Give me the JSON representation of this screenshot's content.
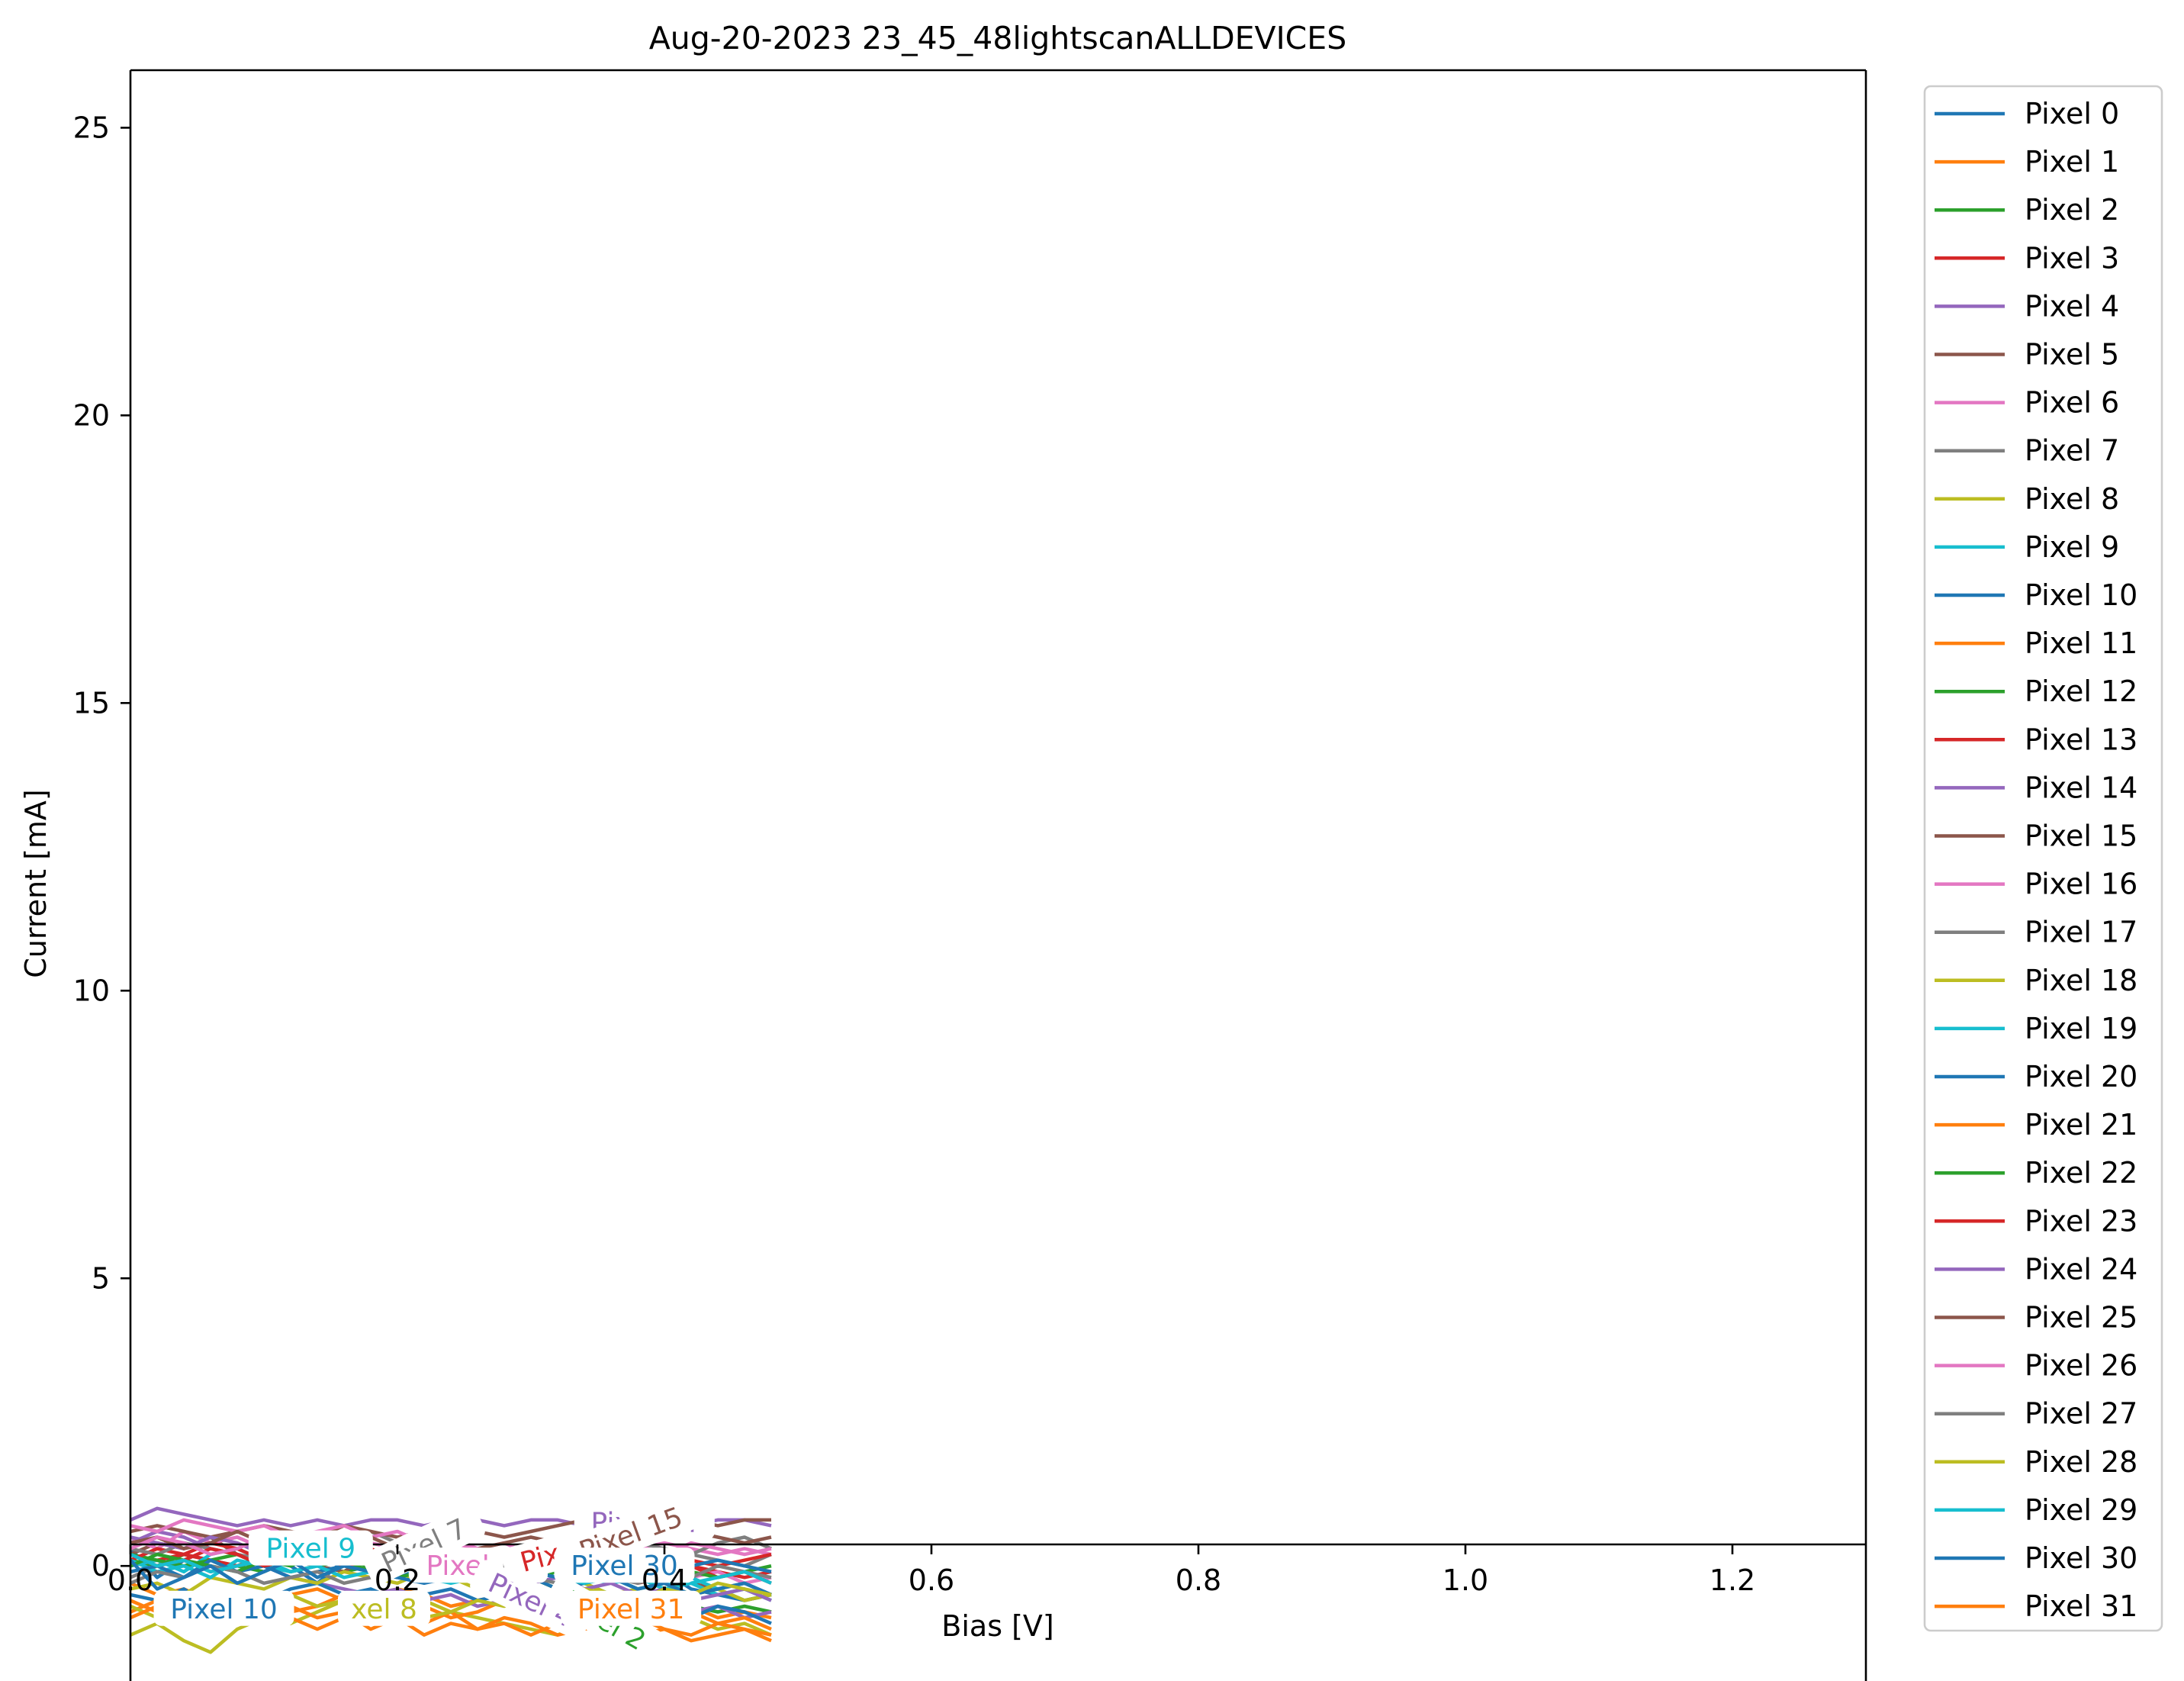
{
  "chart_data": {
    "type": "line",
    "title": "Aug-20-2023 23_45_48lightscanALLDEVICES",
    "xlabel": "Bias [V]",
    "ylabel": "Current [mA]",
    "xlim": [
      0.0,
      1.3
    ],
    "ylim": [
      -2.0,
      26.0
    ],
    "xticks": [
      0.0,
      0.2,
      0.4,
      0.6,
      0.8,
      1.0,
      1.2
    ],
    "xtick_labels": [
      "0.0",
      "0.2",
      "0.4",
      "0.6",
      "0.8",
      "1.0",
      "1.2"
    ],
    "yticks": [
      0,
      5,
      10,
      15,
      20,
      25
    ],
    "ytick_labels": [
      "0",
      "5",
      "10",
      "15",
      "20",
      "25"
    ],
    "grid": false,
    "legend_position": "outside-right",
    "x": [
      0.0,
      0.02,
      0.04,
      0.06,
      0.08,
      0.1,
      0.12,
      0.14,
      0.16,
      0.18,
      0.2,
      0.22,
      0.24,
      0.26,
      0.28,
      0.3,
      0.32,
      0.34,
      0.36,
      0.38,
      0.4,
      0.42,
      0.44,
      0.46,
      0.48
    ],
    "series": [
      {
        "name": "Pixel 0",
        "color": "#1f77b4",
        "values": [
          0.3,
          -0.2,
          0.1,
          0.0,
          -0.1,
          0.1,
          0.0,
          -0.3,
          0.1,
          0.0,
          -0.2,
          0.0,
          0.1,
          -0.1,
          0.0,
          -0.2,
          0.1,
          -0.1,
          -0.3,
          -0.2,
          -0.1,
          -0.4,
          -0.5,
          -0.6,
          -0.5
        ]
      },
      {
        "name": "Pixel 1",
        "color": "#ff7f0e",
        "values": [
          -0.3,
          -0.5,
          -0.4,
          -0.6,
          -0.5,
          -0.7,
          -0.5,
          -0.4,
          -0.6,
          -0.5,
          -0.4,
          -0.5,
          -0.7,
          -0.6,
          -0.5,
          -0.8,
          -0.6,
          -0.7,
          -0.5,
          -0.6,
          -0.8,
          -0.7,
          -0.9,
          -0.8,
          -0.9
        ]
      },
      {
        "name": "Pixel 2",
        "color": "#2ca02c",
        "values": [
          0.1,
          0.0,
          0.2,
          0.1,
          0.0,
          -0.1,
          0.1,
          0.0,
          -0.1,
          0.0,
          0.1,
          -0.1,
          -0.2,
          -0.1,
          -0.3,
          -0.2,
          -0.4,
          -0.3,
          -0.5,
          -0.6,
          -0.5,
          -0.7,
          -0.8,
          -0.7,
          -0.8
        ]
      },
      {
        "name": "Pixel 3",
        "color": "#d62728",
        "values": [
          0.0,
          0.1,
          0.2,
          0.1,
          0.0,
          0.1,
          0.2,
          0.0,
          0.1,
          0.3,
          0.1,
          0.0,
          0.1,
          0.2,
          0.1,
          0.2,
          0.3,
          0.2,
          0.1,
          0.0,
          -0.1,
          0.0,
          -0.1,
          -0.2,
          -0.1
        ]
      },
      {
        "name": "Pixel 4",
        "color": "#9467bd",
        "values": [
          0.4,
          0.6,
          0.5,
          0.3,
          0.2,
          0.0,
          -0.2,
          -0.3,
          -0.4,
          -0.5,
          -0.4,
          -0.6,
          -0.5,
          -0.7,
          -0.6,
          -0.8,
          -0.7,
          -0.6,
          -0.5,
          -0.7,
          -0.6,
          -0.8,
          -0.7,
          -0.9,
          -0.8
        ]
      },
      {
        "name": "Pixel 5",
        "color": "#8c564b",
        "values": [
          0.2,
          0.4,
          0.3,
          0.5,
          0.2,
          0.1,
          0.3,
          0.0,
          -0.1,
          0.2,
          0.0,
          -0.2,
          -0.1,
          -0.3,
          -0.2,
          -0.1,
          0.0,
          -0.2,
          -0.1,
          -0.3,
          -0.2,
          -0.3,
          -0.4,
          -0.3,
          -0.5
        ]
      },
      {
        "name": "Pixel 6",
        "color": "#e377c2",
        "values": [
          0.5,
          0.3,
          0.6,
          0.4,
          0.5,
          0.3,
          0.2,
          0.4,
          0.3,
          0.1,
          0.2,
          0.0,
          0.1,
          -0.1,
          0.0,
          0.1,
          0.2,
          0.0,
          -0.1,
          0.1,
          0.0,
          -0.2,
          -0.1,
          -0.3,
          -0.2
        ]
      },
      {
        "name": "Pixel 7",
        "color": "#7f7f7f",
        "values": [
          -0.2,
          0.0,
          0.1,
          -0.1,
          0.0,
          0.2,
          0.1,
          0.0,
          0.3,
          0.6,
          0.4,
          0.2,
          0.0,
          -0.2,
          -0.1,
          0.0,
          0.1,
          0.2,
          0.0,
          0.1,
          0.3,
          0.2,
          0.1,
          0.0,
          0.2
        ]
      },
      {
        "name": "Pixel 8",
        "color": "#bcbd22",
        "values": [
          -1.2,
          -1.0,
          -1.3,
          -1.5,
          -1.1,
          -0.9,
          -1.0,
          -0.8,
          -0.6,
          -0.7,
          -0.5,
          -0.6,
          -0.8,
          -0.9,
          -1.0,
          -1.1,
          -1.2,
          -1.0,
          -0.9,
          -0.8,
          -1.0,
          -0.9,
          -1.1,
          -1.0,
          -1.2
        ]
      },
      {
        "name": "Pixel 9",
        "color": "#17becf",
        "values": [
          0.0,
          0.1,
          -0.1,
          0.2,
          0.3,
          0.1,
          0.2,
          0.0,
          0.1,
          -0.1,
          0.0,
          -0.2,
          -0.3,
          -0.2,
          -0.1,
          0.0,
          -0.1,
          -0.2,
          -0.3,
          -0.2,
          -0.4,
          -0.3,
          -0.5,
          -0.4,
          -0.6
        ]
      },
      {
        "name": "Pixel 10",
        "color": "#1f77b4",
        "values": [
          -0.5,
          -0.6,
          -0.4,
          -0.7,
          -0.5,
          -0.6,
          -0.4,
          -0.3,
          -0.5,
          -0.4,
          -0.6,
          -0.5,
          -0.4,
          -0.6,
          -0.5,
          -0.7,
          -0.6,
          -0.8,
          -0.7,
          -0.6,
          -0.8,
          -0.9,
          -0.7,
          -0.8,
          -1.0
        ]
      },
      {
        "name": "Pixel 11",
        "color": "#ff7f0e",
        "values": [
          -0.8,
          -0.6,
          -0.9,
          -0.7,
          -1.0,
          -0.8,
          -0.7,
          -0.9,
          -0.8,
          -1.1,
          -0.9,
          -1.0,
          -0.8,
          -1.1,
          -1.0,
          -1.2,
          -1.0,
          -1.1,
          -0.9,
          -1.2,
          -1.1,
          -1.3,
          -1.2,
          -1.1,
          -1.3
        ]
      },
      {
        "name": "Pixel 12",
        "color": "#2ca02c",
        "values": [
          0.2,
          0.1,
          0.0,
          0.1,
          0.2,
          0.0,
          -0.1,
          0.0,
          0.1,
          -0.1,
          -0.2,
          -0.1,
          0.0,
          -0.2,
          -0.3,
          -0.2,
          -0.1,
          -0.3,
          -0.2,
          -0.4,
          -0.3,
          -0.5,
          -0.4,
          -0.6,
          -0.5
        ]
      },
      {
        "name": "Pixel 13",
        "color": "#d62728",
        "values": [
          0.1,
          0.3,
          0.2,
          0.4,
          0.3,
          0.1,
          0.2,
          0.3,
          0.1,
          0.0,
          0.2,
          0.1,
          0.0,
          0.1,
          -0.1,
          0.0,
          0.1,
          0.0,
          -0.1,
          0.0,
          0.1,
          0.0,
          -0.2,
          -0.1,
          -0.3
        ]
      },
      {
        "name": "Pixel 14",
        "color": "#9467bd",
        "values": [
          0.8,
          1.0,
          0.9,
          0.8,
          0.7,
          0.8,
          0.7,
          0.8,
          0.7,
          0.8,
          0.8,
          0.7,
          0.8,
          0.8,
          0.7,
          0.8,
          0.8,
          0.7,
          0.8,
          0.8,
          0.8,
          0.7,
          0.8,
          0.8,
          0.7
        ]
      },
      {
        "name": "Pixel 15",
        "color": "#8c564b",
        "values": [
          0.6,
          0.7,
          0.6,
          0.5,
          0.6,
          0.7,
          0.6,
          0.5,
          0.7,
          0.6,
          0.5,
          0.6,
          0.7,
          0.6,
          0.5,
          0.6,
          0.7,
          0.8,
          0.7,
          0.6,
          0.7,
          0.8,
          0.7,
          0.8,
          0.8
        ]
      },
      {
        "name": "Pixel 16",
        "color": "#e377c2",
        "values": [
          0.7,
          0.6,
          0.8,
          0.7,
          0.6,
          0.7,
          0.5,
          0.6,
          0.7,
          0.5,
          0.6,
          0.4,
          0.5,
          0.3,
          0.4,
          0.2,
          0.3,
          0.4,
          0.2,
          0.3,
          0.4,
          0.3,
          0.2,
          0.3,
          0.2
        ]
      },
      {
        "name": "Pixel 17",
        "color": "#7f7f7f",
        "values": [
          0.3,
          0.2,
          0.4,
          0.3,
          0.2,
          0.1,
          0.2,
          0.3,
          0.1,
          0.0,
          0.1,
          0.2,
          0.0,
          0.1,
          0.2,
          0.0,
          0.1,
          0.3,
          0.2,
          0.4,
          0.3,
          0.2,
          0.4,
          0.5,
          0.3
        ]
      },
      {
        "name": "Pixel 18",
        "color": "#bcbd22",
        "values": [
          -0.4,
          -0.3,
          -0.5,
          -0.2,
          -0.3,
          -0.4,
          -0.2,
          -0.3,
          -0.1,
          -0.2,
          -0.3,
          -0.1,
          -0.2,
          -0.4,
          -0.3,
          -0.2,
          -0.4,
          -0.3,
          -0.5,
          -0.4,
          -0.3,
          -0.5,
          -0.4,
          -0.6,
          -0.5
        ]
      },
      {
        "name": "Pixel 19",
        "color": "#17becf",
        "values": [
          0.1,
          -0.1,
          0.0,
          -0.2,
          0.1,
          0.0,
          -0.1,
          0.0,
          0.2,
          0.1,
          0.0,
          -0.1,
          -0.2,
          -0.1,
          -0.3,
          -0.2,
          -0.1,
          -0.3,
          -0.2,
          -0.4,
          -0.3,
          -0.2,
          -0.4,
          -0.3,
          -0.5
        ]
      },
      {
        "name": "Pixel 20",
        "color": "#1f77b4",
        "values": [
          -0.1,
          0.0,
          -0.2,
          0.1,
          -0.1,
          0.0,
          -0.2,
          -0.1,
          0.0,
          -0.1,
          -0.2,
          -0.3,
          -0.2,
          -0.1,
          -0.3,
          -0.2,
          -0.4,
          -0.3,
          -0.2,
          -0.4,
          -0.3,
          -0.5,
          -0.4,
          -0.3,
          -0.5
        ]
      },
      {
        "name": "Pixel 21",
        "color": "#ff7f0e",
        "values": [
          -0.6,
          -0.8,
          -0.5,
          -0.7,
          -0.9,
          -0.6,
          -0.8,
          -0.7,
          -0.5,
          -0.6,
          -0.8,
          -0.7,
          -0.9,
          -0.8,
          -0.6,
          -0.7,
          -0.9,
          -0.8,
          -1.0,
          -0.9,
          -0.7,
          -0.8,
          -1.0,
          -0.9,
          -1.1
        ]
      },
      {
        "name": "Pixel 22",
        "color": "#2ca02c",
        "values": [
          0.0,
          0.2,
          0.1,
          0.0,
          -0.1,
          0.1,
          0.0,
          0.2,
          0.1,
          0.0,
          -0.1,
          0.0,
          0.1,
          0.0,
          -0.1,
          -0.2,
          -0.1,
          0.0,
          -0.2,
          -0.1,
          0.0,
          -0.1,
          -0.2,
          -0.1,
          0.0
        ]
      },
      {
        "name": "Pixel 23",
        "color": "#d62728",
        "values": [
          0.2,
          0.0,
          0.1,
          0.3,
          0.2,
          0.0,
          0.1,
          0.2,
          0.0,
          0.1,
          0.3,
          0.2,
          0.1,
          0.0,
          0.2,
          0.1,
          0.0,
          0.2,
          0.1,
          0.3,
          0.2,
          0.1,
          0.0,
          0.1,
          0.2
        ]
      },
      {
        "name": "Pixel 24",
        "color": "#9467bd",
        "values": [
          0.5,
          0.4,
          0.3,
          0.5,
          0.4,
          0.2,
          0.3,
          0.1,
          0.2,
          0.0,
          0.1,
          -0.1,
          0.0,
          -0.2,
          -0.1,
          -0.3,
          -0.2,
          -0.4,
          -0.3,
          -0.5,
          -0.4,
          -0.6,
          -0.5,
          -0.4,
          -0.6
        ]
      },
      {
        "name": "Pixel 25",
        "color": "#8c564b",
        "values": [
          0.4,
          0.5,
          0.3,
          0.4,
          0.6,
          0.4,
          0.5,
          0.3,
          0.4,
          0.5,
          0.3,
          0.4,
          0.2,
          0.3,
          0.4,
          0.5,
          0.4,
          0.6,
          0.5,
          0.4,
          0.5,
          0.6,
          0.5,
          0.4,
          0.5
        ]
      },
      {
        "name": "Pixel 26",
        "color": "#e377c2",
        "values": [
          0.3,
          0.5,
          0.4,
          0.2,
          0.3,
          0.5,
          0.4,
          0.3,
          0.2,
          0.4,
          0.3,
          0.5,
          0.4,
          0.3,
          0.2,
          0.3,
          0.4,
          0.2,
          0.3,
          0.1,
          0.2,
          0.4,
          0.3,
          0.2,
          0.3
        ]
      },
      {
        "name": "Pixel 27",
        "color": "#7f7f7f",
        "values": [
          -0.3,
          -0.1,
          -0.2,
          0.0,
          -0.1,
          -0.3,
          -0.2,
          -0.1,
          -0.3,
          -0.2,
          0.0,
          -0.1,
          -0.2,
          0.0,
          -0.1,
          -0.2,
          -0.3,
          -0.1,
          -0.2,
          -0.3,
          -0.1,
          -0.2,
          0.0,
          -0.1,
          -0.2
        ]
      },
      {
        "name": "Pixel 28",
        "color": "#bcbd22",
        "values": [
          -0.7,
          -0.9,
          -0.8,
          -0.6,
          -0.8,
          -0.7,
          -0.5,
          -0.7,
          -0.6,
          -0.8,
          -0.7,
          -0.9,
          -0.8,
          -0.6,
          -0.7,
          -0.5,
          -0.6,
          -0.4,
          -0.5,
          -0.6,
          -0.4,
          -0.5,
          -0.3,
          -0.4,
          -0.5
        ]
      },
      {
        "name": "Pixel 29",
        "color": "#17becf",
        "values": [
          0.2,
          0.0,
          0.1,
          -0.1,
          0.0,
          0.1,
          -0.1,
          0.0,
          -0.2,
          -0.1,
          0.0,
          -0.1,
          -0.2,
          -0.1,
          0.0,
          -0.1,
          -0.2,
          -0.3,
          -0.2,
          -0.1,
          -0.2,
          -0.3,
          -0.2,
          -0.1,
          -0.3
        ]
      },
      {
        "name": "Pixel 30",
        "color": "#1f77b4",
        "values": [
          0.1,
          -0.4,
          -0.2,
          0.0,
          -0.3,
          -0.1,
          0.1,
          -0.2,
          0.0,
          -0.1,
          0.2,
          0.0,
          -0.1,
          -0.2,
          0.0,
          -0.1,
          -0.2,
          0.0,
          0.1,
          0.0,
          -0.1,
          0.0,
          0.1,
          0.0,
          -0.1
        ]
      },
      {
        "name": "Pixel 31",
        "color": "#ff7f0e",
        "values": [
          -0.9,
          -0.7,
          -1.0,
          -0.8,
          -0.6,
          -0.8,
          -0.9,
          -1.1,
          -0.9,
          -0.7,
          -0.9,
          -1.2,
          -1.0,
          -1.1,
          -0.9,
          -1.0,
          -1.2,
          -1.1,
          -1.0,
          -0.9,
          -1.1,
          -1.2,
          -1.0,
          -1.1,
          -1.2
        ]
      }
    ],
    "annotations": [
      {
        "text": "Pixel 9",
        "color": "#17becf",
        "x": 0.135,
        "y": 0.3,
        "rotation": 0
      },
      {
        "text": "Pixel 10",
        "color": "#1f77b4",
        "x": 0.07,
        "y": -0.75,
        "rotation": 0
      },
      {
        "text": "xel 8",
        "color": "#bcbd22",
        "x": 0.19,
        "y": -0.75,
        "rotation": 0
      },
      {
        "text": "Pixel 7",
        "color": "#7f7f7f",
        "x": 0.22,
        "y": 0.35,
        "rotation": 25
      },
      {
        "text": "Pixel 6",
        "color": "#e377c2",
        "x": 0.255,
        "y": 0.0,
        "rotation": 0
      },
      {
        "text": "l 5",
        "color": "#7f7f7f",
        "x": 0.29,
        "y": 0.0,
        "rotation": 0
      },
      {
        "text": "Pixel 4",
        "color": "#9467bd",
        "x": 0.3,
        "y": -0.6,
        "rotation": -25
      },
      {
        "text": "Pixel 3",
        "color": "#d62728",
        "x": 0.325,
        "y": 0.25,
        "rotation": 15
      },
      {
        "text": "Pixel 2",
        "color": "#2ca02c",
        "x": 0.355,
        "y": -0.95,
        "rotation": -30
      },
      {
        "text": "Pixel 14",
        "color": "#9467bd",
        "x": 0.385,
        "y": 0.75,
        "rotation": 0
      },
      {
        "text": "Pixel 15",
        "color": "#8c564b",
        "x": 0.375,
        "y": 0.55,
        "rotation": 20
      },
      {
        "text": "Pixel 30",
        "color": "#1f77b4",
        "x": 0.37,
        "y": 0.0,
        "rotation": 0
      },
      {
        "text": "Pixel 31",
        "color": "#ff7f0e",
        "x": 0.375,
        "y": -0.75,
        "rotation": 0
      }
    ]
  }
}
